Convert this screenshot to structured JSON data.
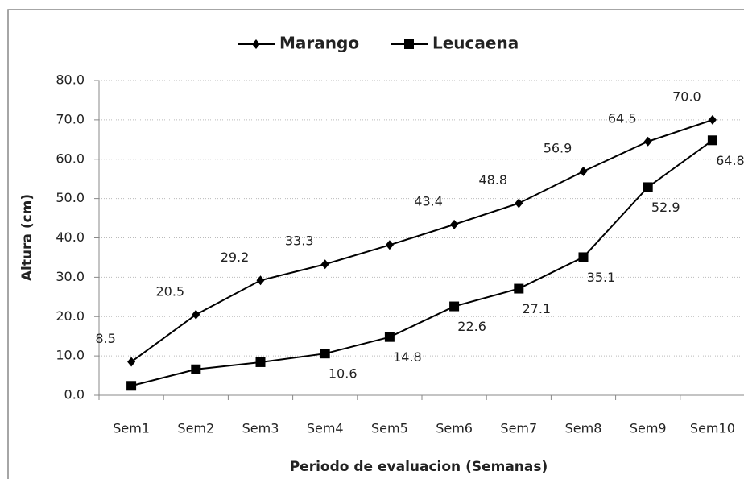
{
  "chart_data": {
    "type": "line",
    "x_label": "Periodo de evaluacion (Semanas)",
    "y_label": "Altura (cm)",
    "categories": [
      "Sem1",
      "Sem2",
      "Sem3",
      "Sem4",
      "Sem5",
      "Sem6",
      "Sem7",
      "Sem8",
      "Sem9",
      "Sem10"
    ],
    "series": [
      {
        "name": "Marango",
        "color": "#000000",
        "marker": "diamond",
        "values": [
          8.5,
          20.5,
          29.2,
          33.3,
          38.2,
          43.4,
          48.8,
          56.9,
          64.5,
          70.0
        ],
        "value_labels": [
          "8.5",
          "20.5",
          "29.2",
          "33.3",
          null,
          "43.4",
          "48.8",
          "56.9",
          "64.5",
          "70.0"
        ]
      },
      {
        "name": "Leucaena",
        "color": "#000000",
        "marker": "square",
        "values": [
          2.4,
          6.6,
          8.4,
          10.6,
          14.8,
          22.6,
          27.1,
          35.1,
          52.9,
          64.8
        ],
        "value_labels": [
          null,
          null,
          null,
          "10.6",
          "14.8",
          "22.6",
          "27.1",
          "35.1",
          "52.9",
          "64.8"
        ]
      }
    ],
    "ylim": [
      0,
      80
    ],
    "yticks": [
      {
        "value": 0,
        "label": "0.0"
      },
      {
        "value": 10,
        "label": "10.0"
      },
      {
        "value": 20,
        "label": "20.0"
      },
      {
        "value": 30,
        "label": "30.0"
      },
      {
        "value": 40,
        "label": "40.0"
      },
      {
        "value": 50,
        "label": "50.0"
      },
      {
        "value": 60,
        "label": "60.0"
      },
      {
        "value": 70,
        "label": "70.0"
      },
      {
        "value": 80,
        "label": "80.0"
      }
    ],
    "grid": true,
    "legend": "top"
  }
}
